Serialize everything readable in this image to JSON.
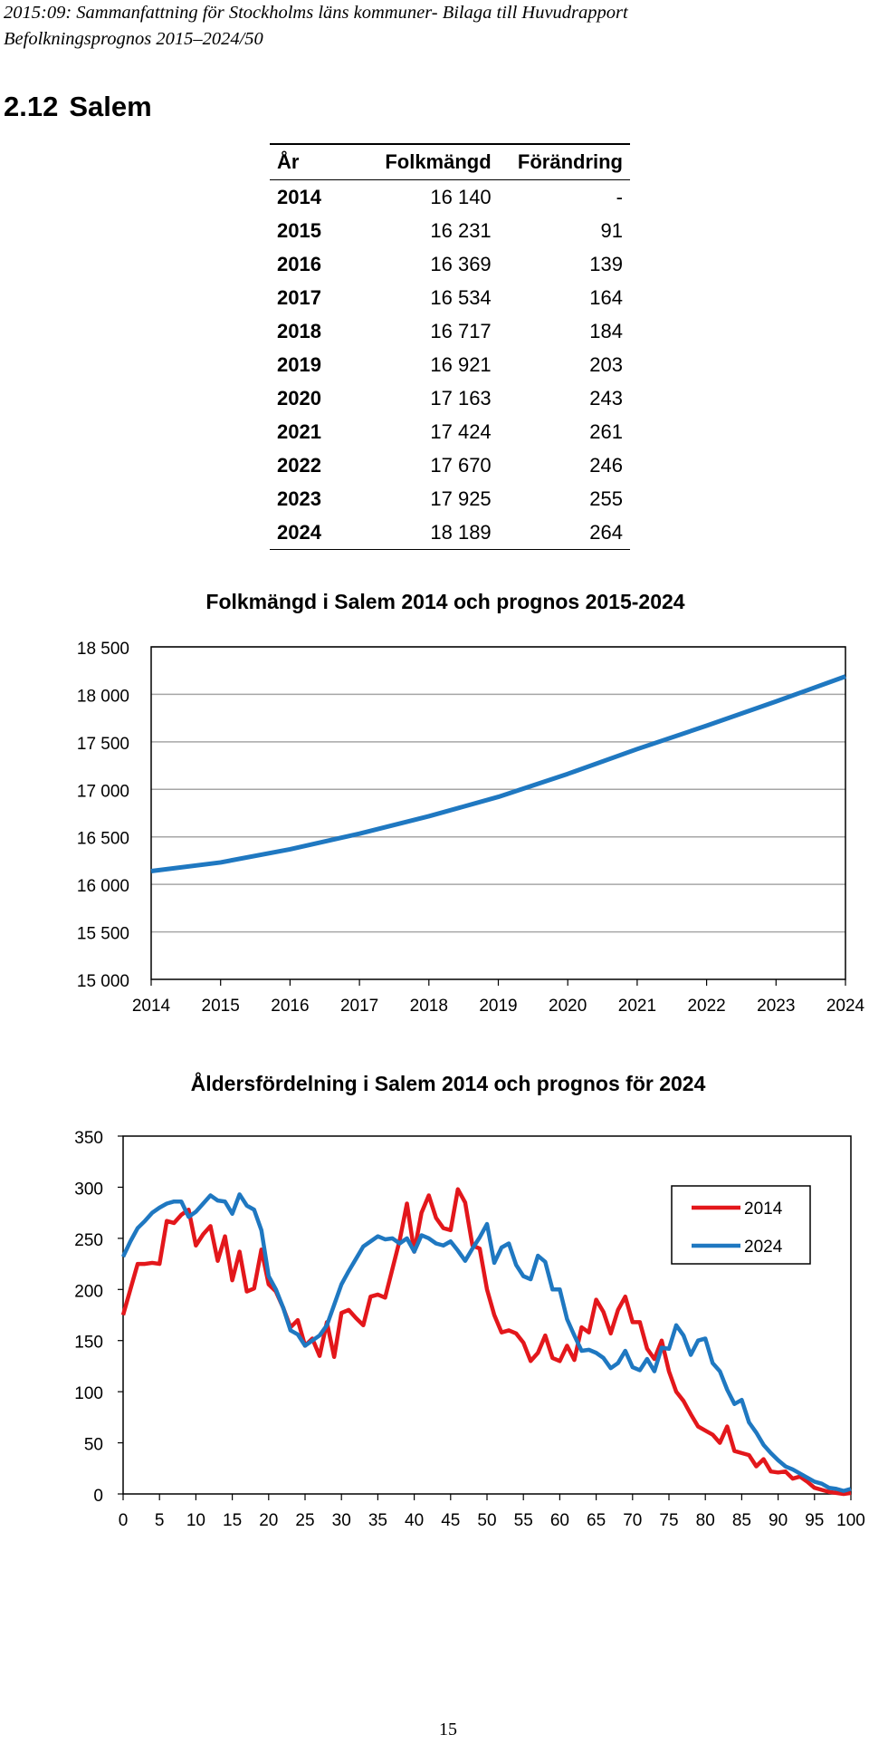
{
  "header": {
    "line1": "2015:09: Sammanfattning för Stockholms läns kommuner- Bilaga till Huvudrapport",
    "line2": "Befolkningsprognos 2015–2024/50"
  },
  "section": {
    "number": "2.12",
    "title": "Salem"
  },
  "table": {
    "columns": [
      "År",
      "Folkmängd",
      "Förändring"
    ],
    "rows": [
      [
        "2014",
        "16 140",
        "-"
      ],
      [
        "2015",
        "16 231",
        "91"
      ],
      [
        "2016",
        "16 369",
        "139"
      ],
      [
        "2017",
        "16 534",
        "164"
      ],
      [
        "2018",
        "16 717",
        "184"
      ],
      [
        "2019",
        "16 921",
        "203"
      ],
      [
        "2020",
        "17 163",
        "243"
      ],
      [
        "2021",
        "17 424",
        "261"
      ],
      [
        "2022",
        "17 670",
        "246"
      ],
      [
        "2023",
        "17 925",
        "255"
      ],
      [
        "2024",
        "18 189",
        "264"
      ]
    ]
  },
  "chart_data": [
    {
      "type": "line",
      "title": "Folkmängd i Salem 2014 och prognos 2015-2024",
      "xlabel": "",
      "ylabel": "",
      "x": [
        2014,
        2015,
        2016,
        2017,
        2018,
        2019,
        2020,
        2021,
        2022,
        2023,
        2024
      ],
      "series": [
        {
          "values": [
            16140,
            16231,
            16369,
            16534,
            16717,
            16921,
            17163,
            17424,
            17670,
            17925,
            18189
          ],
          "color": "#1f78c1"
        }
      ],
      "ylim": [
        15000,
        18500
      ],
      "yticks": [
        "15 000",
        "15 500",
        "16 000",
        "16 500",
        "17 000",
        "17 500",
        "18 000",
        "18 500"
      ],
      "xticks": [
        "2014",
        "2015",
        "2016",
        "2017",
        "2018",
        "2019",
        "2020",
        "2021",
        "2022",
        "2023",
        "2024"
      ],
      "grid": true,
      "legend": "none"
    },
    {
      "type": "line",
      "title": "Åldersfördelning i Salem 2014 och prognos för 2024",
      "xlabel": "",
      "ylabel": "",
      "xlim": [
        0,
        100
      ],
      "ylim": [
        0,
        350
      ],
      "yticks": [
        "0",
        "50",
        "100",
        "150",
        "200",
        "250",
        "300",
        "350"
      ],
      "xticks": [
        "0",
        "5",
        "10",
        "15",
        "20",
        "25",
        "30",
        "35",
        "40",
        "45",
        "50",
        "55",
        "60",
        "65",
        "70",
        "75",
        "80",
        "85",
        "90",
        "95",
        "100"
      ],
      "grid": false,
      "legend": "top-right",
      "series": [
        {
          "name": "2014",
          "color": "#e3171b",
          "values": [
            175,
            200,
            225,
            225,
            226,
            225,
            267,
            265,
            273,
            278,
            243,
            254,
            262,
            228,
            252,
            209,
            237,
            198,
            201,
            239,
            205,
            198,
            182,
            163,
            170,
            145,
            152,
            135,
            168,
            134,
            177,
            180,
            172,
            165,
            193,
            195,
            192,
            220,
            248,
            284,
            237,
            275,
            292,
            270,
            260,
            258,
            298,
            285,
            243,
            240,
            200,
            175,
            158,
            160,
            157,
            148,
            130,
            138,
            155,
            133,
            130,
            145,
            131,
            163,
            158,
            190,
            178,
            157,
            180,
            193,
            168,
            168,
            142,
            132,
            150,
            120,
            100,
            91,
            78,
            66,
            62,
            58,
            50,
            66,
            42,
            40,
            38,
            27,
            34,
            22,
            21,
            22,
            15,
            17,
            12,
            6,
            4,
            2,
            1,
            0,
            1
          ]
        },
        {
          "name": "2024",
          "color": "#1f78c1",
          "values": [
            232,
            247,
            260,
            267,
            275,
            280,
            284,
            286,
            286,
            271,
            276,
            284,
            292,
            287,
            286,
            274,
            293,
            282,
            278,
            258,
            213,
            200,
            182,
            160,
            156,
            145,
            150,
            155,
            165,
            185,
            205,
            218,
            230,
            242,
            247,
            252,
            249,
            250,
            245,
            250,
            237,
            253,
            250,
            245,
            243,
            247,
            238,
            228,
            240,
            251,
            264,
            226,
            241,
            245,
            224,
            213,
            210,
            233,
            227,
            200,
            200,
            171,
            155,
            140,
            141,
            138,
            133,
            123,
            128,
            140,
            124,
            121,
            132,
            120,
            143,
            142,
            165,
            155,
            136,
            150,
            152,
            128,
            120,
            102,
            88,
            92,
            70,
            60,
            48,
            40,
            33,
            27,
            24,
            20,
            16,
            12,
            10,
            6,
            5,
            3,
            5
          ]
        }
      ]
    }
  ],
  "page_number": "15"
}
